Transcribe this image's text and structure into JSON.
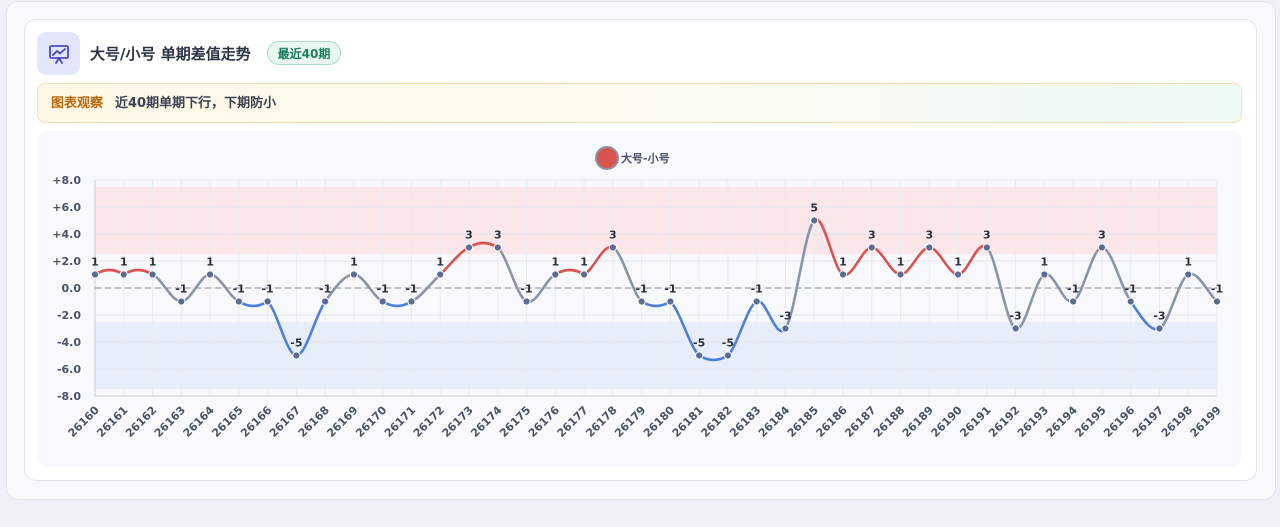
{
  "header": {
    "icon": "chart-presentation-icon",
    "title": "大号/小号 单期差值走势",
    "badge": "最近40期"
  },
  "observation": {
    "label": "图表观察",
    "text": "近40期单期下行，下期防小"
  },
  "colors": {
    "up": "#d9534f",
    "down": "#4f80d8",
    "neutral": "#8a94a6",
    "point": "#5a6c94",
    "band_high": "#fbe6e9",
    "band_low": "#e7edf9"
  },
  "chart_data": {
    "type": "line",
    "smooth": true,
    "legend": {
      "position": "top-center",
      "label": "大号-小号"
    },
    "x": [
      "26160",
      "26161",
      "26162",
      "26163",
      "26164",
      "26165",
      "26166",
      "26167",
      "26168",
      "26169",
      "26170",
      "26171",
      "26172",
      "26173",
      "26174",
      "26175",
      "26176",
      "26177",
      "26178",
      "26179",
      "26180",
      "26181",
      "26182",
      "26183",
      "26184",
      "26185",
      "26186",
      "26187",
      "26188",
      "26189",
      "26190",
      "26191",
      "26192",
      "26193",
      "26194",
      "26195",
      "26196",
      "26197",
      "26198",
      "26199"
    ],
    "series": [
      {
        "name": "大号-小号",
        "values": [
          1,
          1,
          1,
          -1,
          1,
          -1,
          -1,
          -5,
          -1,
          1,
          -1,
          -1,
          1,
          3,
          3,
          -1,
          1,
          1,
          3,
          -1,
          -1,
          -5,
          -5,
          -1,
          -3,
          5,
          1,
          3,
          1,
          3,
          1,
          3,
          -3,
          1,
          -1,
          3,
          -1,
          -3,
          1,
          -1
        ]
      }
    ],
    "ylim": [
      -8,
      8
    ],
    "yticks": [
      -8,
      -6,
      -4,
      -2,
      0,
      2,
      4,
      6,
      8
    ],
    "ytick_labels": [
      "-8.0",
      "-6.0",
      "-4.0",
      "-2.0",
      "0.0",
      "+2.0",
      "+4.0",
      "+6.0",
      "+8.0"
    ],
    "bands": [
      {
        "from": 2.5,
        "to": 7.5,
        "kind": "high"
      },
      {
        "from": -7.5,
        "to": -2.5,
        "kind": "low"
      }
    ],
    "zero_line": "dashed",
    "grid": true
  }
}
